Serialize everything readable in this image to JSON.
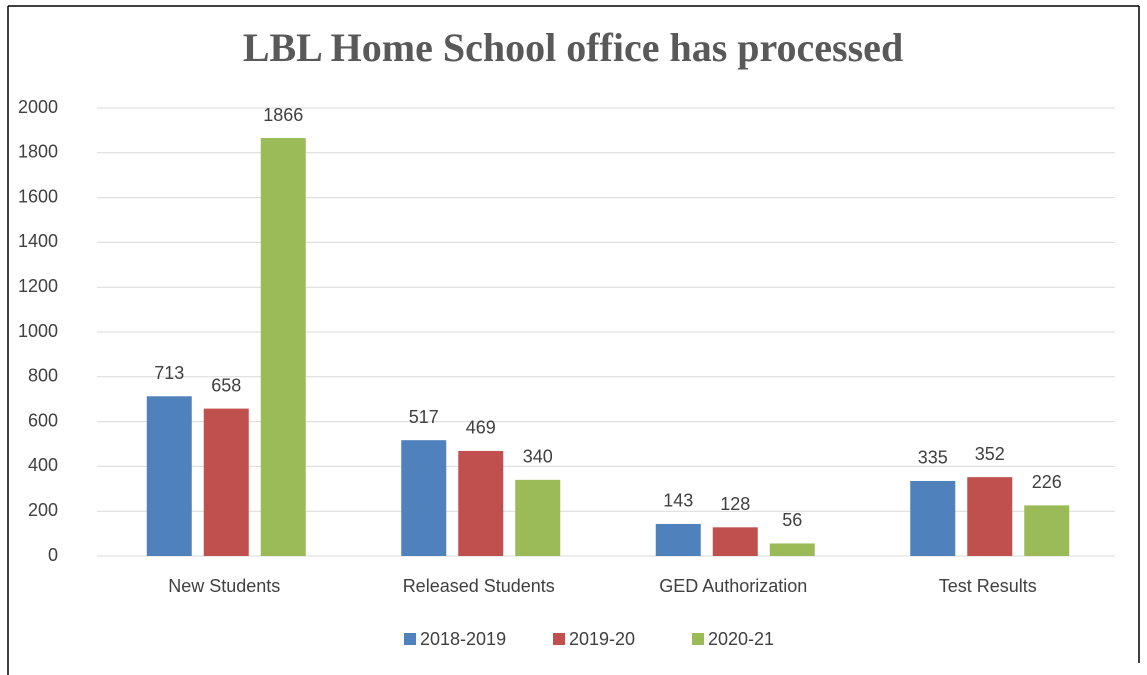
{
  "chart_data": {
    "type": "bar",
    "title": "LBL Home School office has processed",
    "categories": [
      "New Students",
      "Released Students",
      "GED Authorization",
      "Test Results"
    ],
    "series": [
      {
        "name": "2018-2019",
        "color": "#4f81bd",
        "values": [
          713,
          517,
          143,
          335
        ]
      },
      {
        "name": "2019-20",
        "color": "#c0504d",
        "values": [
          658,
          469,
          128,
          352
        ]
      },
      {
        "name": "2020-21",
        "color": "#9bbb59",
        "values": [
          1866,
          340,
          56,
          226
        ]
      }
    ],
    "ylim": [
      0,
      2000
    ],
    "yticks": [
      0,
      200,
      400,
      600,
      800,
      1000,
      1200,
      1400,
      1600,
      1800,
      2000
    ],
    "grid": true,
    "legend": "bottom"
  }
}
